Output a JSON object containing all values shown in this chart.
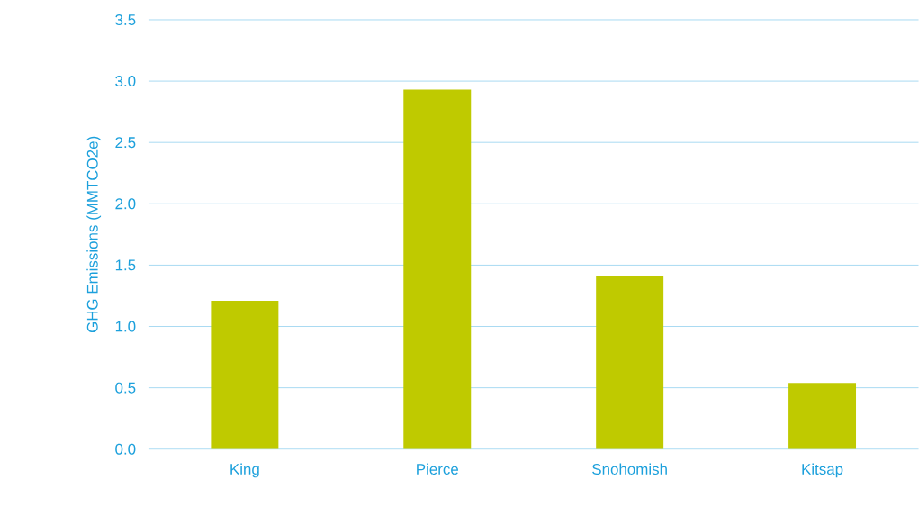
{
  "chart_data": {
    "type": "bar",
    "ylabel": "GHG Emissions (MMTCO2e)",
    "categories": [
      "King",
      "Pierce",
      "Snohomish",
      "Kitsap"
    ],
    "values": [
      1.21,
      2.93,
      1.41,
      0.54
    ],
    "color": "#bfca00",
    "ylim": [
      0,
      3.5
    ],
    "yticks": [
      {
        "value": 0,
        "label": "0.0"
      },
      {
        "value": 0.5,
        "label": "0.5"
      },
      {
        "value": 1,
        "label": "1.0"
      },
      {
        "value": 1.5,
        "label": "1.5"
      },
      {
        "value": 2,
        "label": "2.0"
      },
      {
        "value": 2.5,
        "label": "2.5"
      },
      {
        "value": 3,
        "label": "3.0"
      },
      {
        "value": 3.5,
        "label": "3.5"
      }
    ],
    "grid": "y"
  }
}
